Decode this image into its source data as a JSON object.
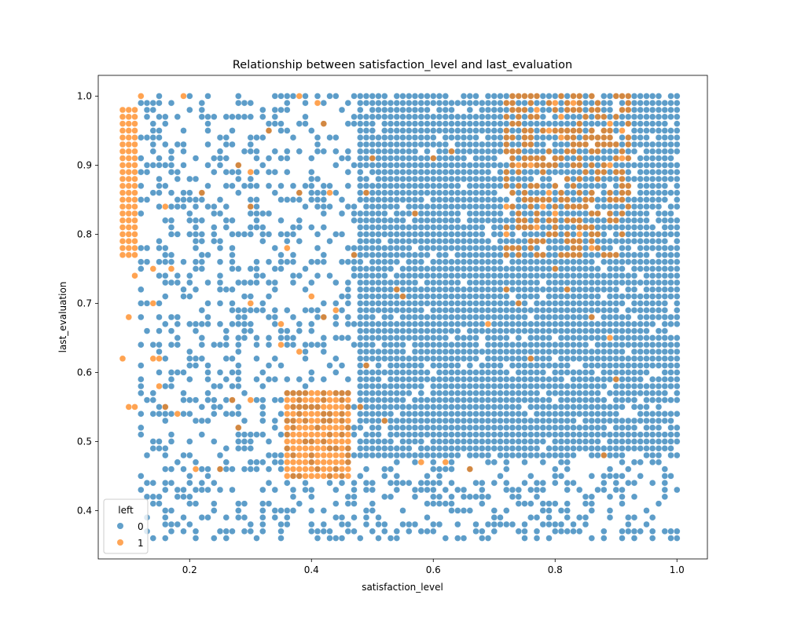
{
  "chart_data": {
    "type": "scatter",
    "title": "Relationship between satisfaction_level and last_evaluation",
    "xlabel": "satisfaction_level",
    "ylabel": "last_evaluation",
    "xlim": [
      0.05,
      1.05
    ],
    "ylim": [
      0.33,
      1.03
    ],
    "x_ticks": [
      "0.2",
      "0.4",
      "0.6",
      "0.8",
      "1.0"
    ],
    "x_tick_values": [
      0.2,
      0.4,
      0.6,
      0.8,
      1.0
    ],
    "y_ticks": [
      "0.4",
      "0.5",
      "0.6",
      "0.7",
      "0.8",
      "0.9",
      "1.0"
    ],
    "y_tick_values": [
      0.4,
      0.5,
      0.6,
      0.7,
      0.8,
      0.9,
      1.0
    ],
    "grid": false,
    "legend": {
      "title": "left",
      "placement": "lower-left",
      "entries": [
        {
          "label": "0",
          "color": "#1f77b4"
        },
        {
          "label": "1",
          "color": "#ff7f0e"
        }
      ]
    },
    "series": [
      {
        "name": "0",
        "color": "#1f77b4",
        "regions": [
          {
            "x": [
              0.48,
              1.0
            ],
            "y": [
              0.48,
              1.0
            ],
            "density": 0.93
          },
          {
            "x": [
              0.12,
              0.47
            ],
            "y": [
              0.36,
              1.0
            ],
            "density": 0.33
          },
          {
            "x": [
              0.48,
              1.0
            ],
            "y": [
              0.36,
              0.47
            ],
            "density": 0.35
          }
        ]
      },
      {
        "name": "1",
        "color": "#ff7f0e",
        "regions": [
          {
            "x": [
              0.09,
              0.11
            ],
            "y": [
              0.77,
              0.98
            ],
            "density": 1.0
          },
          {
            "x": [
              0.36,
              0.46
            ],
            "y": [
              0.45,
              0.57
            ],
            "density": 1.0
          },
          {
            "x": [
              0.72,
              0.92
            ],
            "y": [
              0.77,
              1.0
            ],
            "density": 0.45
          }
        ],
        "points": [
          [
            0.12,
            1.0
          ],
          [
            0.19,
            1.0
          ],
          [
            0.38,
            1.0
          ],
          [
            0.41,
            0.99
          ],
          [
            0.42,
            0.96
          ],
          [
            0.33,
            0.95
          ],
          [
            0.3,
            0.89
          ],
          [
            0.28,
            0.9
          ],
          [
            0.38,
            0.86
          ],
          [
            0.43,
            0.86
          ],
          [
            0.22,
            0.86
          ],
          [
            0.16,
            0.84
          ],
          [
            0.3,
            0.84
          ],
          [
            0.11,
            0.74
          ],
          [
            0.1,
            0.68
          ],
          [
            0.09,
            0.62
          ],
          [
            0.1,
            0.55
          ],
          [
            0.11,
            0.55
          ],
          [
            0.14,
            0.62
          ],
          [
            0.15,
            0.62
          ],
          [
            0.14,
            0.7
          ],
          [
            0.14,
            0.75
          ],
          [
            0.17,
            0.75
          ],
          [
            0.18,
            0.54
          ],
          [
            0.16,
            0.55
          ],
          [
            0.15,
            0.58
          ],
          [
            0.21,
            0.46
          ],
          [
            0.25,
            0.46
          ],
          [
            0.27,
            0.56
          ],
          [
            0.28,
            0.52
          ],
          [
            0.3,
            0.56
          ],
          [
            0.3,
            0.7
          ],
          [
            0.36,
            0.78
          ],
          [
            0.35,
            0.67
          ],
          [
            0.35,
            0.64
          ],
          [
            0.38,
            0.63
          ],
          [
            0.4,
            0.71
          ],
          [
            0.42,
            0.68
          ],
          [
            0.44,
            0.69
          ],
          [
            0.47,
            0.77
          ],
          [
            0.49,
            0.86
          ],
          [
            0.5,
            0.91
          ],
          [
            0.54,
            0.72
          ],
          [
            0.55,
            0.71
          ],
          [
            0.57,
            0.83
          ],
          [
            0.6,
            0.91
          ],
          [
            0.63,
            0.92
          ],
          [
            0.69,
            0.67
          ],
          [
            0.72,
            0.72
          ],
          [
            0.74,
            0.7
          ],
          [
            0.76,
            0.62
          ],
          [
            0.8,
            0.75
          ],
          [
            0.82,
            0.72
          ],
          [
            0.86,
            0.68
          ],
          [
            0.89,
            0.65
          ],
          [
            0.9,
            0.59
          ],
          [
            0.88,
            0.48
          ],
          [
            0.58,
            0.47
          ],
          [
            0.62,
            0.47
          ],
          [
            0.66,
            0.46
          ],
          [
            0.52,
            0.53
          ],
          [
            0.48,
            0.55
          ],
          [
            0.49,
            0.61
          ]
        ]
      }
    ]
  }
}
